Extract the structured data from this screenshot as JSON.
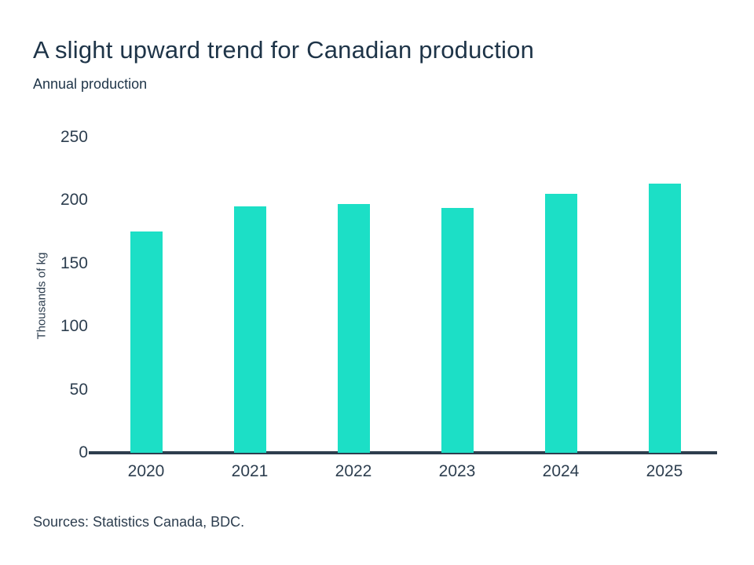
{
  "page": {
    "title": "A slight upward trend for Canadian production",
    "subtitle": "Annual production",
    "sources": "Sources: Statistics Canada, BDC."
  },
  "chart_data": {
    "type": "bar",
    "title": "A slight upward trend for Canadian production",
    "subtitle": "Annual production",
    "categories": [
      "2020",
      "2021",
      "2022",
      "2023",
      "2024",
      "2025"
    ],
    "values": [
      175,
      195,
      197,
      194,
      205,
      213
    ],
    "xlabel": "",
    "ylabel": "Thousands of kg",
    "ylim": [
      0,
      250
    ],
    "yticks": [
      0,
      50,
      100,
      150,
      200,
      250
    ],
    "grid": false,
    "legend": "none",
    "bar_color": "#1cdfc6",
    "axis_color": "#2e3e4e",
    "text_color": "#1e3448",
    "source_note": "Sources: Statistics Canada, BDC."
  }
}
